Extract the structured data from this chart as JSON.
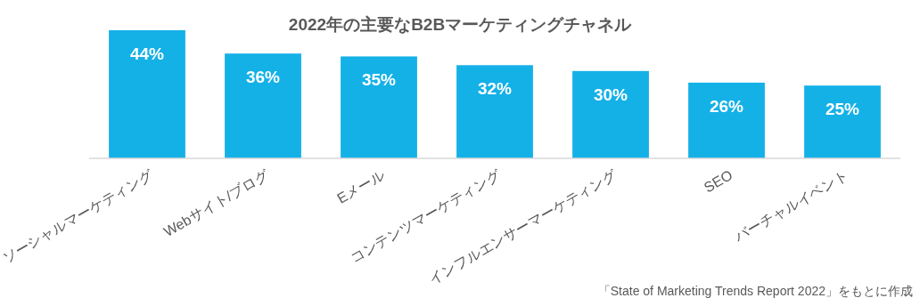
{
  "chart_data": {
    "type": "bar",
    "title": "2022年の主要なB2Bマーケティングチャネル",
    "categories": [
      "ソーシャルマーケティング",
      "Webサイト/ブログ",
      "Eメール",
      "コンテンツマーケティング",
      "インフルエンサーマーケティング",
      "SEO",
      "バーチャルイベント"
    ],
    "values": [
      44,
      36,
      35,
      32,
      30,
      26,
      25
    ],
    "value_labels": [
      "44%",
      "36%",
      "35%",
      "32%",
      "30%",
      "26%",
      "25%"
    ],
    "color": "#14b1e7",
    "annotations": [
      "「State of Marketing Trends Report 2022」をもとに作成"
    ]
  }
}
